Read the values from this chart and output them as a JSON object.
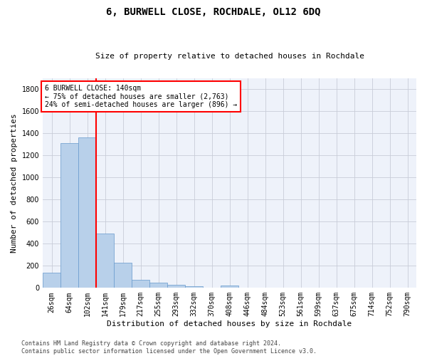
{
  "title": "6, BURWELL CLOSE, ROCHDALE, OL12 6DQ",
  "subtitle": "Size of property relative to detached houses in Rochdale",
  "xlabel": "Distribution of detached houses by size in Rochdale",
  "ylabel": "Number of detached properties",
  "bar_labels": [
    "26sqm",
    "64sqm",
    "102sqm",
    "141sqm",
    "179sqm",
    "217sqm",
    "255sqm",
    "293sqm",
    "332sqm",
    "370sqm",
    "408sqm",
    "446sqm",
    "484sqm",
    "523sqm",
    "561sqm",
    "599sqm",
    "637sqm",
    "675sqm",
    "714sqm",
    "752sqm",
    "790sqm"
  ],
  "bar_values": [
    135,
    1310,
    1360,
    490,
    225,
    75,
    45,
    28,
    18,
    0,
    20,
    0,
    0,
    0,
    0,
    0,
    0,
    0,
    0,
    0,
    0
  ],
  "bar_color": "#b8d0ea",
  "bar_edge_color": "#6699cc",
  "vline_x": 2.5,
  "vline_color": "red",
  "ylim": [
    0,
    1900
  ],
  "yticks": [
    0,
    200,
    400,
    600,
    800,
    1000,
    1200,
    1400,
    1600,
    1800
  ],
  "annotation_text": "6 BURWELL CLOSE: 140sqm\n← 75% of detached houses are smaller (2,763)\n24% of semi-detached houses are larger (896) →",
  "annotation_box_color": "white",
  "annotation_box_edge": "red",
  "footer_text": "Contains HM Land Registry data © Crown copyright and database right 2024.\nContains public sector information licensed under the Open Government Licence v3.0.",
  "background_color": "#eef2fa",
  "grid_color": "#c8ccd8",
  "fig_width": 6.0,
  "fig_height": 5.0,
  "title_fontsize": 10,
  "subtitle_fontsize": 8,
  "ylabel_fontsize": 8,
  "xlabel_fontsize": 8,
  "tick_fontsize": 7,
  "annot_fontsize": 7
}
